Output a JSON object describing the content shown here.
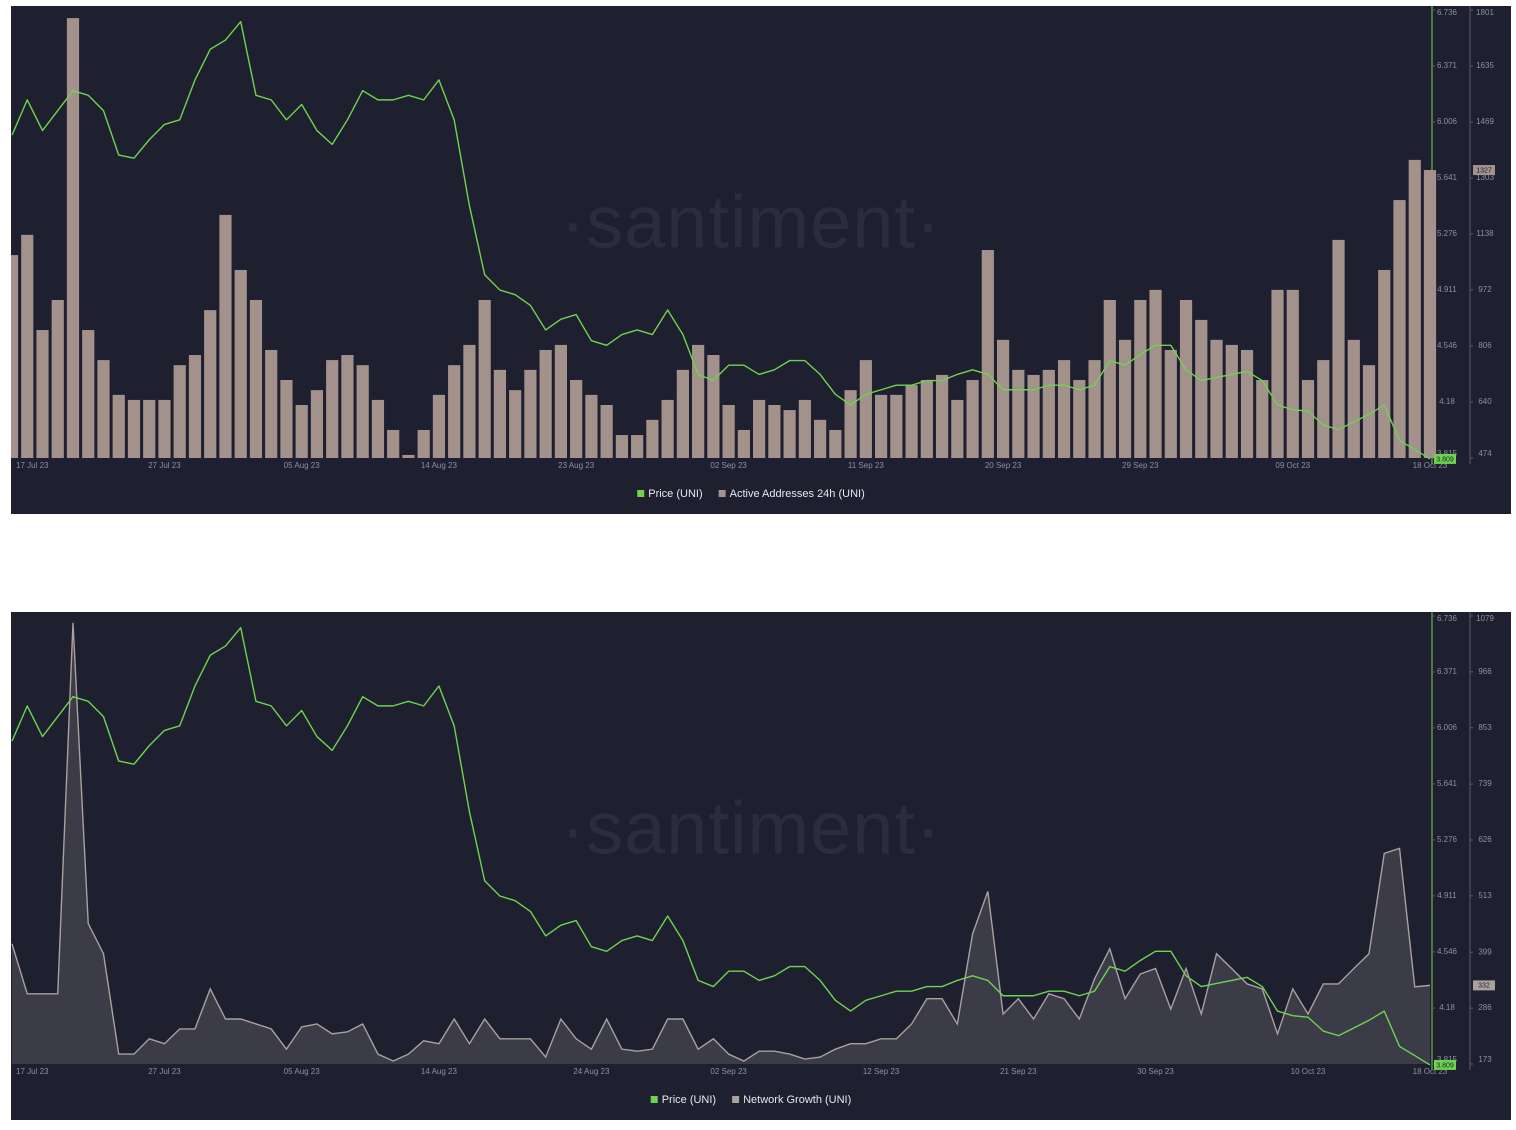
{
  "chart_data": [
    {
      "type": "combo",
      "watermark": "·santiment·",
      "categories": [
        "17 Jul 23",
        null,
        null,
        null,
        null,
        null,
        null,
        null,
        null,
        null,
        "27 Jul 23",
        null,
        null,
        null,
        null,
        null,
        null,
        null,
        null,
        "05 Aug 23",
        null,
        null,
        null,
        null,
        null,
        null,
        null,
        null,
        "14 Aug 23",
        null,
        null,
        null,
        null,
        null,
        null,
        null,
        null,
        "23 Aug 23",
        null,
        null,
        null,
        null,
        null,
        null,
        null,
        null,
        null,
        "02 Sep 23",
        null,
        null,
        null,
        null,
        null,
        null,
        null,
        null,
        "11 Sep 23",
        null,
        null,
        null,
        null,
        null,
        null,
        null,
        null,
        "20 Sep 23",
        null,
        null,
        null,
        null,
        null,
        null,
        null,
        null,
        "29 Sep 23",
        null,
        null,
        null,
        null,
        null,
        null,
        null,
        null,
        null,
        "09 Oct 23",
        null,
        null,
        null,
        null,
        null,
        null,
        null,
        null,
        "18 Oct 23"
      ],
      "ylim": [
        3.815,
        6.736
      ],
      "yticks": [
        3.815,
        4.18,
        4.546,
        4.911,
        5.276,
        5.641,
        6.006,
        6.371,
        6.736
      ],
      "y2lim": [
        474,
        1801
      ],
      "y2ticks": [
        474,
        640,
        806,
        972,
        1138,
        1303,
        1469,
        1635,
        1801
      ],
      "legend": "bottom",
      "series": [
        {
          "name": "Price (UNI)",
          "type": "line",
          "color": "#6fd34f",
          "values": [
            5.92,
            6.15,
            5.95,
            6.08,
            6.21,
            6.18,
            6.08,
            5.79,
            5.77,
            5.89,
            5.99,
            6.02,
            6.28,
            6.48,
            6.54,
            6.66,
            6.18,
            6.15,
            6.02,
            6.12,
            5.95,
            5.86,
            6.02,
            6.21,
            6.15,
            6.15,
            6.18,
            6.15,
            6.28,
            6.02,
            5.46,
            5.01,
            4.91,
            4.88,
            4.81,
            4.65,
            4.72,
            4.75,
            4.58,
            4.55,
            4.62,
            4.65,
            4.62,
            4.78,
            4.62,
            4.36,
            4.32,
            4.42,
            4.42,
            4.36,
            4.39,
            4.45,
            4.45,
            4.36,
            4.23,
            4.16,
            4.23,
            4.26,
            4.29,
            4.29,
            4.32,
            4.32,
            4.36,
            4.39,
            4.36,
            4.26,
            4.26,
            4.26,
            4.29,
            4.29,
            4.26,
            4.29,
            4.45,
            4.42,
            4.49,
            4.55,
            4.55,
            4.39,
            4.32,
            4.34,
            4.36,
            4.38,
            4.32,
            4.16,
            4.13,
            4.12,
            4.03,
            4.0,
            4.05,
            4.1,
            4.16,
            3.93,
            3.87,
            3.809
          ]
        },
        {
          "name": "Active Addresses 24h (UNI)",
          "type": "bar",
          "axis": "y2",
          "color": "#a3918c",
          "values": [
            1075,
            1135,
            853,
            942,
            1777,
            853,
            764,
            661,
            646,
            646,
            646,
            749,
            779,
            912,
            1194,
            1031,
            942,
            794,
            705,
            631,
            675,
            764,
            779,
            749,
            646,
            557,
            483,
            557,
            661,
            749,
            809,
            942,
            735,
            675,
            735,
            794,
            809,
            705,
            661,
            631,
            542,
            542,
            587,
            646,
            735,
            809,
            779,
            631,
            557,
            646,
            631,
            616,
            646,
            587,
            557,
            675,
            764,
            661,
            661,
            690,
            705,
            720,
            646,
            705,
            1090,
            824,
            735,
            720,
            735,
            764,
            705,
            764,
            942,
            824,
            942,
            972,
            794,
            942,
            883,
            824,
            809,
            794,
            705,
            972,
            972,
            705,
            764,
            1120,
            824,
            749,
            1031,
            1238,
            1357,
            1327
          ]
        }
      ]
    },
    {
      "type": "combo",
      "watermark": "·santiment·",
      "categories": [
        "17 Jul 23",
        null,
        null,
        null,
        null,
        null,
        null,
        null,
        null,
        null,
        "27 Jul 23",
        null,
        null,
        null,
        null,
        null,
        null,
        null,
        null,
        "05 Aug 23",
        null,
        null,
        null,
        null,
        null,
        null,
        null,
        null,
        "14 Aug 23",
        null,
        null,
        null,
        null,
        null,
        null,
        null,
        null,
        null,
        "24 Aug 23",
        null,
        null,
        null,
        null,
        null,
        null,
        null,
        null,
        "02 Sep 23",
        null,
        null,
        null,
        null,
        null,
        null,
        null,
        null,
        null,
        "12 Sep 23",
        null,
        null,
        null,
        null,
        null,
        null,
        null,
        null,
        "21 Sep 23",
        null,
        null,
        null,
        null,
        null,
        null,
        null,
        null,
        "30 Sep 23",
        null,
        null,
        null,
        null,
        null,
        null,
        null,
        null,
        null,
        "10 Oct 23",
        null,
        null,
        null,
        null,
        null,
        null,
        null,
        "18 Oct 23"
      ],
      "ylim": [
        3.815,
        6.736
      ],
      "yticks": [
        3.815,
        4.18,
        4.546,
        4.911,
        5.276,
        5.641,
        6.006,
        6.371,
        6.736
      ],
      "y2lim": [
        173,
        1079
      ],
      "y2ticks": [
        173,
        286,
        399,
        513,
        626,
        739,
        853,
        966,
        1079
      ],
      "legend": "bottom",
      "series": [
        {
          "name": "Price (UNI)",
          "type": "line",
          "color": "#6fd34f",
          "values": [
            5.92,
            6.15,
            5.95,
            6.08,
            6.21,
            6.18,
            6.08,
            5.79,
            5.77,
            5.89,
            5.99,
            6.02,
            6.28,
            6.48,
            6.54,
            6.66,
            6.18,
            6.15,
            6.02,
            6.12,
            5.95,
            5.86,
            6.02,
            6.21,
            6.15,
            6.15,
            6.18,
            6.15,
            6.28,
            6.02,
            5.46,
            5.01,
            4.91,
            4.88,
            4.81,
            4.65,
            4.72,
            4.75,
            4.58,
            4.55,
            4.62,
            4.65,
            4.62,
            4.78,
            4.62,
            4.36,
            4.32,
            4.42,
            4.42,
            4.36,
            4.39,
            4.45,
            4.45,
            4.36,
            4.23,
            4.16,
            4.23,
            4.26,
            4.29,
            4.29,
            4.32,
            4.32,
            4.36,
            4.39,
            4.36,
            4.26,
            4.26,
            4.26,
            4.29,
            4.29,
            4.26,
            4.29,
            4.45,
            4.42,
            4.49,
            4.55,
            4.55,
            4.39,
            4.32,
            4.34,
            4.36,
            4.38,
            4.32,
            4.16,
            4.13,
            4.12,
            4.03,
            4.0,
            4.05,
            4.1,
            4.16,
            3.93,
            3.87,
            3.809
          ]
        },
        {
          "name": "Network Growth (UNI)",
          "type": "area",
          "axis": "y2",
          "color": "#aaa09e",
          "values": [
            416,
            315,
            315,
            315,
            1065,
            457,
            396,
            193,
            193,
            224,
            214,
            244,
            244,
            325,
            264,
            264,
            254,
            244,
            203,
            248,
            254,
            234,
            238,
            254,
            193,
            179,
            193,
            220,
            214,
            264,
            214,
            264,
            224,
            224,
            224,
            187,
            264,
            224,
            203,
            264,
            203,
            199,
            203,
            264,
            264,
            203,
            224,
            193,
            179,
            199,
            199,
            193,
            183,
            187,
            203,
            214,
            214,
            224,
            224,
            254,
            305,
            305,
            254,
            436,
            522,
            274,
            305,
            264,
            315,
            305,
            264,
            345,
            406,
            305,
            355,
            366,
            284,
            366,
            274,
            396,
            366,
            335,
            325,
            234,
            325,
            274,
            335,
            335,
            366,
            396,
            599,
            609,
            329,
            332
          ]
        }
      ]
    }
  ]
}
